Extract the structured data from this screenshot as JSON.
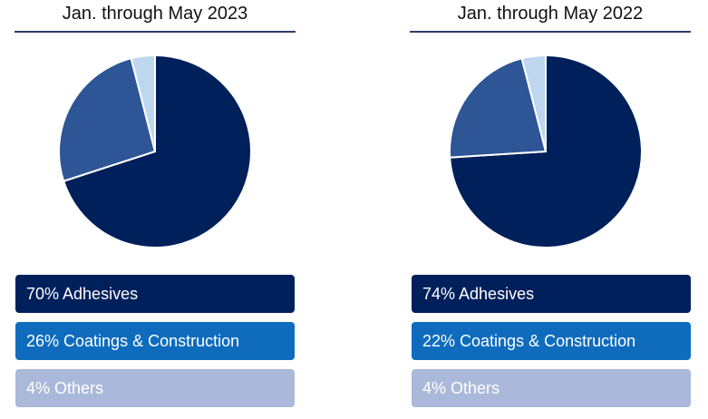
{
  "chart_data": [
    {
      "type": "pie",
      "title": "Jan. through May 2023",
      "slices": [
        {
          "label": "70% Adhesives",
          "value": 70,
          "color": "#00205b"
        },
        {
          "label": "26% Coatings & Construction",
          "value": 26,
          "color": "#2e5596"
        },
        {
          "label": "4% Others",
          "value": 4,
          "color": "#bdd7ee"
        }
      ],
      "legend": [
        {
          "text": "70% Adhesives",
          "bg": "#00205b"
        },
        {
          "text": "26% Coatings & Construction",
          "bg": "#0f6cbd"
        },
        {
          "text": "4% Others",
          "bg": "#aab9da"
        }
      ]
    },
    {
      "type": "pie",
      "title": "Jan. through May 2022",
      "slices": [
        {
          "label": "74% Adhesives",
          "value": 74,
          "color": "#00205b"
        },
        {
          "label": "22% Coatings & Construction",
          "value": 22,
          "color": "#2e5596"
        },
        {
          "label": "4% Others",
          "value": 4,
          "color": "#bdd7ee"
        }
      ],
      "legend": [
        {
          "text": "74% Adhesives",
          "bg": "#00205b"
        },
        {
          "text": "22% Coatings & Construction",
          "bg": "#0f6cbd"
        },
        {
          "text": "4% Others",
          "bg": "#aab9da"
        }
      ]
    }
  ]
}
